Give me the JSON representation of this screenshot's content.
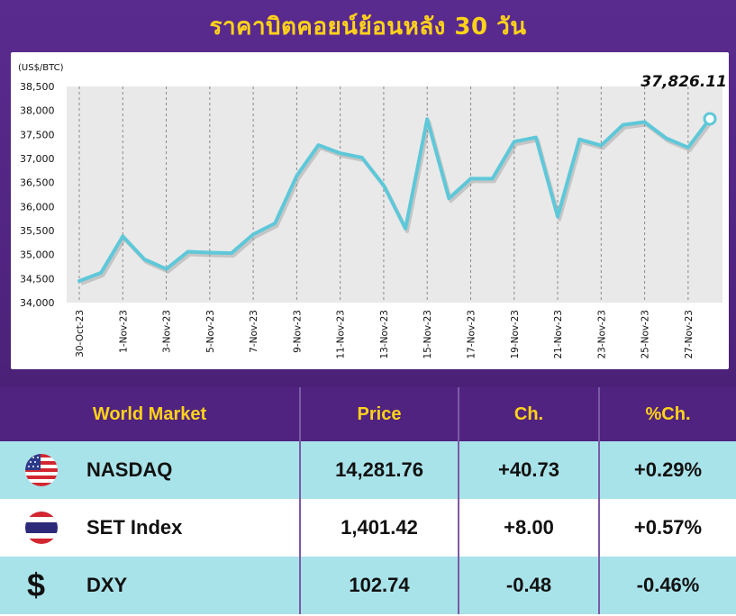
{
  "title": "ราคาบิตคอยน์ย้อนหลัง 30 วัน",
  "chart_data": {
    "type": "line",
    "ylabel": "(US$/BTC)",
    "ylim": [
      34000,
      38500
    ],
    "yticks": [
      "38,500",
      "38,000",
      "37,500",
      "37,000",
      "36,500",
      "36,000",
      "35,500",
      "35,000",
      "34,500",
      "34,000"
    ],
    "x": [
      "30-Oct-23",
      "31-Oct-23",
      "1-Nov-23",
      "2-Nov-23",
      "3-Nov-23",
      "4-Nov-23",
      "5-Nov-23",
      "6-Nov-23",
      "7-Nov-23",
      "8-Nov-23",
      "9-Nov-23",
      "10-Nov-23",
      "11-Nov-23",
      "12-Nov-23",
      "13-Nov-23",
      "14-Nov-23",
      "15-Nov-23",
      "16-Nov-23",
      "17-Nov-23",
      "18-Nov-23",
      "19-Nov-23",
      "20-Nov-23",
      "21-Nov-23",
      "22-Nov-23",
      "23-Nov-23",
      "24-Nov-23",
      "25-Nov-23",
      "26-Nov-23",
      "27-Nov-23",
      "28-Nov-23"
    ],
    "xtick_labels": [
      "30-Oct-23",
      "1-Nov-23",
      "3-Nov-23",
      "5-Nov-23",
      "7-Nov-23",
      "9-Nov-23",
      "11-Nov-23",
      "13-Nov-23",
      "15-Nov-23",
      "17-Nov-23",
      "19-Nov-23",
      "21-Nov-23",
      "23-Nov-23",
      "25-Nov-23",
      "27-Nov-23"
    ],
    "values": [
      34450,
      34620,
      35380,
      34900,
      34700,
      35060,
      35040,
      35030,
      35420,
      35650,
      36640,
      37280,
      37110,
      37020,
      36440,
      35540,
      37820,
      36170,
      36580,
      36580,
      37350,
      37440,
      35790,
      37400,
      37270,
      37700,
      37760,
      37420,
      37230,
      37826.11
    ],
    "last_label": "37,826.11",
    "grid": "vertical",
    "line_color": "#5ec8d9"
  },
  "table": {
    "headers": [
      "World Market",
      "Price",
      "Ch.",
      "%Ch."
    ],
    "rows": [
      {
        "icon": "us-flag-icon",
        "name": "NASDAQ",
        "price": "14,281.76",
        "ch": "+40.73",
        "pct": "+0.29%"
      },
      {
        "icon": "thai-flag-icon",
        "name": "SET Index",
        "price": "1,401.42",
        "ch": "+8.00",
        "pct": "+0.57%"
      },
      {
        "icon": "dollar-sign-icon",
        "dollar": "$",
        "name": "DXY",
        "price": "102.74",
        "ch": "-0.48",
        "pct": "-0.46%"
      }
    ]
  }
}
